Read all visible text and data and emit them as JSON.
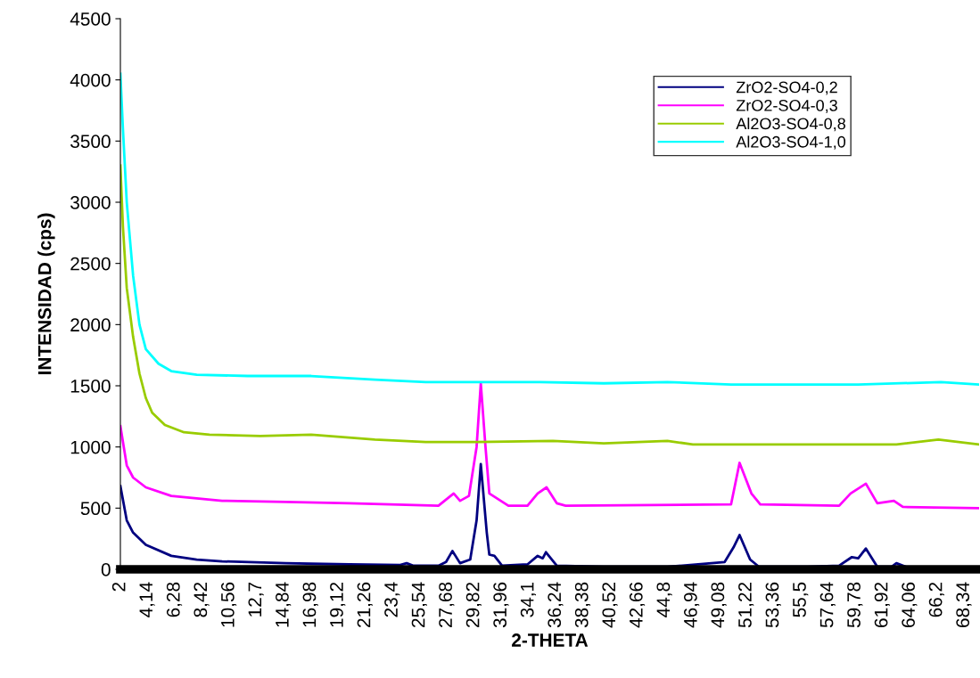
{
  "chart_data": {
    "type": "line",
    "xlabel": "2-THETA",
    "ylabel": "INTENSIDAD (cps)",
    "xlim": [
      2,
      69.5
    ],
    "ylim": [
      0,
      4500
    ],
    "xticks": [
      2,
      {
        "value": 4.14,
        "label": "4,14"
      },
      {
        "value": 6.28,
        "label": "6,28"
      },
      {
        "value": 8.42,
        "label": "8,42"
      },
      {
        "value": 10.56,
        "label": "10,56"
      },
      {
        "value": 12.7,
        "label": "12,7"
      },
      {
        "value": 14.84,
        "label": "14,84"
      },
      {
        "value": 16.98,
        "label": "16,98"
      },
      {
        "value": 19.12,
        "label": "19,12"
      },
      {
        "value": 21.26,
        "label": "21,26"
      },
      {
        "value": 23.4,
        "label": "23,4"
      },
      {
        "value": 25.54,
        "label": "25,54"
      },
      {
        "value": 27.68,
        "label": "27,68"
      },
      {
        "value": 29.82,
        "label": "29,82"
      },
      {
        "value": 31.96,
        "label": "31,96"
      },
      {
        "value": 34.1,
        "label": "34,1"
      },
      {
        "value": 36.24,
        "label": "36,24"
      },
      {
        "value": 38.38,
        "label": "38,38"
      },
      {
        "value": 40.52,
        "label": "40,52"
      },
      {
        "value": 42.66,
        "label": "42,66"
      },
      {
        "value": 44.8,
        "label": "44,8"
      },
      {
        "value": 46.94,
        "label": "46,94"
      },
      {
        "value": 49.08,
        "label": "49,08"
      },
      {
        "value": 51.22,
        "label": "51,22"
      },
      {
        "value": 53.36,
        "label": "53,36"
      },
      {
        "value": 55.5,
        "label": "55,5"
      },
      {
        "value": 57.64,
        "label": "57,64"
      },
      {
        "value": 59.78,
        "label": "59,78"
      },
      {
        "value": 61.92,
        "label": "61,92"
      },
      {
        "value": 64.06,
        "label": "64,06"
      },
      {
        "value": 66.2,
        "label": "66,2"
      },
      {
        "value": 68.34,
        "label": "68,34"
      }
    ],
    "yticks": [
      0,
      500,
      1000,
      1500,
      2000,
      2500,
      3000,
      3500,
      4000,
      4500
    ],
    "grid": false,
    "legend": "top right",
    "marker": "none",
    "line_style": "solid",
    "series": [
      {
        "name": "ZrO2-SO4-0,2",
        "color": "#000080",
        "x": [
          2,
          2.5,
          3,
          4,
          6,
          8,
          10,
          15,
          20,
          24,
          24.5,
          25,
          27,
          27.6,
          28.1,
          28.7,
          29.5,
          30.0,
          30.33,
          30.8,
          31.0,
          31.4,
          32,
          34,
          34.8,
          35.2,
          35.45,
          36.3,
          40,
          45,
          49.5,
          50.2,
          50.67,
          51.5,
          52.2,
          56,
          58.5,
          59.5,
          60.0,
          60.6,
          61.5,
          62.6,
          63.0,
          64,
          69.5
        ],
        "values": [
          680,
          400,
          300,
          200,
          110,
          80,
          65,
          50,
          40,
          35,
          50,
          30,
          30,
          60,
          150,
          50,
          80,
          400,
          860,
          300,
          120,
          110,
          30,
          40,
          110,
          90,
          140,
          30,
          20,
          20,
          60,
          180,
          280,
          80,
          20,
          20,
          30,
          100,
          90,
          170,
          20,
          20,
          50,
          10,
          10
        ]
      },
      {
        "name": "ZrO2-SO4-0,3",
        "color": "#ff00ff",
        "x": [
          2,
          2.5,
          3,
          4,
          6,
          10,
          15,
          20,
          27,
          28.2,
          28.7,
          29.4,
          30.0,
          30.33,
          30.7,
          31.0,
          31.6,
          32.5,
          34,
          34.8,
          35.5,
          36.3,
          37,
          50,
          50.67,
          51.6,
          52.3,
          58.5,
          59.4,
          60.6,
          61.5,
          62.8,
          63.5,
          69.5
        ],
        "values": [
          1170,
          850,
          750,
          670,
          600,
          560,
          550,
          540,
          520,
          620,
          560,
          600,
          1000,
          1520,
          1000,
          620,
          580,
          520,
          520,
          620,
          670,
          540,
          520,
          530,
          870,
          620,
          530,
          520,
          620,
          700,
          540,
          560,
          510,
          500
        ]
      },
      {
        "name": "Al2O3-SO4-0,8",
        "color": "#99cc00",
        "x": [
          2,
          2.2,
          2.5,
          3,
          3.5,
          4,
          4.5,
          5.5,
          7,
          9,
          13,
          17,
          22,
          26,
          30,
          36,
          40,
          45,
          47,
          55,
          63,
          66.3,
          69.5
        ],
        "values": [
          3300,
          2800,
          2300,
          1900,
          1600,
          1400,
          1280,
          1180,
          1120,
          1100,
          1090,
          1100,
          1060,
          1040,
          1040,
          1050,
          1030,
          1050,
          1020,
          1020,
          1020,
          1060,
          1020
        ]
      },
      {
        "name": "Al2O3-SO4-1,0",
        "color": "#00ffff",
        "x": [
          2,
          2.2,
          2.5,
          3,
          3.5,
          4,
          5,
          6,
          8,
          12,
          17,
          22,
          26,
          35,
          40,
          45,
          50,
          60,
          66.5,
          69.5
        ],
        "values": [
          4050,
          3600,
          3000,
          2400,
          2000,
          1800,
          1680,
          1620,
          1590,
          1580,
          1580,
          1550,
          1530,
          1530,
          1520,
          1530,
          1510,
          1510,
          1530,
          1510
        ]
      }
    ]
  }
}
